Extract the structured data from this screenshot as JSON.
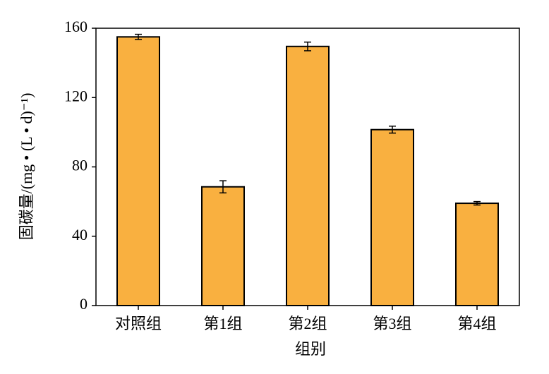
{
  "chart_data": {
    "type": "bar",
    "x_label": "组别",
    "y_label": "固碳量/(mg • (L • d)⁻¹)",
    "categories": [
      "对照组",
      "第1组",
      "第2组",
      "第3组",
      "第4组"
    ],
    "values": [
      155,
      68.5,
      149.5,
      101.5,
      59
    ],
    "errors": [
      1.5,
      3.5,
      2.5,
      2,
      1
    ],
    "color": "#f9b040",
    "ylim": [
      0,
      160
    ],
    "yticks": [
      0,
      40,
      80,
      120,
      160
    ],
    "grid": false
  }
}
